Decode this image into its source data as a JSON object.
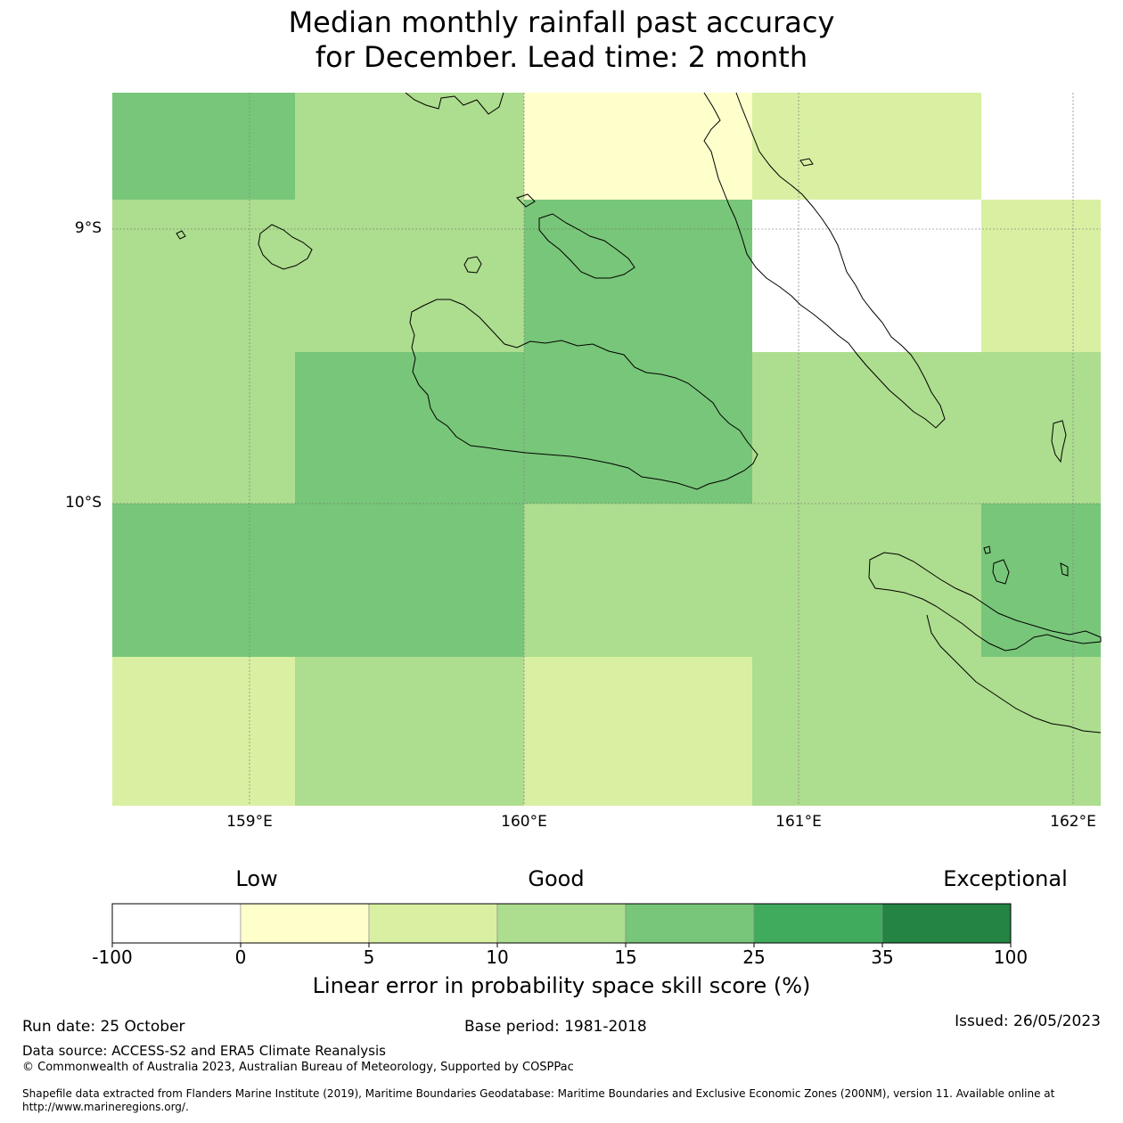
{
  "title_line1": "Median monthly rainfall past accuracy",
  "title_line2": "for December. Lead time: 2 month",
  "map": {
    "lon_range": [
      158.5,
      162.1
    ],
    "lat_range": [
      -8.5,
      -11.1
    ],
    "lat_labels": [
      "9°S",
      "10°S"
    ],
    "lon_labels": [
      "159°E",
      "160°E",
      "161°E",
      "162°E"
    ],
    "grid_cells": [
      {
        "row": 0,
        "col": 0,
        "category": "15-25"
      },
      {
        "row": 0,
        "col": 1,
        "category": "10-15"
      },
      {
        "row": 0,
        "col": 2,
        "category": "0-5"
      },
      {
        "row": 0,
        "col": 3,
        "category": "5-10"
      },
      {
        "row": 0,
        "col": 4,
        "category": "none"
      },
      {
        "row": 1,
        "col": 0,
        "category": "10-15"
      },
      {
        "row": 1,
        "col": 1,
        "category": "10-15"
      },
      {
        "row": 1,
        "col": 2,
        "category": "15-25"
      },
      {
        "row": 1,
        "col": 3,
        "category": "none"
      },
      {
        "row": 1,
        "col": 4,
        "category": "5-10"
      },
      {
        "row": 2,
        "col": 0,
        "category": "10-15"
      },
      {
        "row": 2,
        "col": 1,
        "category": "15-25"
      },
      {
        "row": 2,
        "col": 2,
        "category": "15-25"
      },
      {
        "row": 2,
        "col": 3,
        "category": "10-15"
      },
      {
        "row": 2,
        "col": 4,
        "category": "10-15"
      },
      {
        "row": 3,
        "col": 0,
        "category": "15-25"
      },
      {
        "row": 3,
        "col": 1,
        "category": "15-25"
      },
      {
        "row": 3,
        "col": 2,
        "category": "10-15"
      },
      {
        "row": 3,
        "col": 3,
        "category": "10-15"
      },
      {
        "row": 3,
        "col": 4,
        "category": "15-25"
      },
      {
        "row": 4,
        "col": 0,
        "category": "5-10"
      },
      {
        "row": 4,
        "col": 1,
        "category": "10-15"
      },
      {
        "row": 4,
        "col": 2,
        "category": "5-10"
      },
      {
        "row": 4,
        "col": 3,
        "category": "10-15"
      },
      {
        "row": 4,
        "col": 4,
        "category": "10-15"
      }
    ]
  },
  "colorbar": {
    "low_label": "Low",
    "good_label": "Good",
    "exceptional_label": "Exceptional",
    "ticks": [
      "-100",
      "0",
      "5",
      "10",
      "15",
      "25",
      "35",
      "100"
    ],
    "colors": [
      "#ffffff",
      "#ffffcc",
      "#d9f0a3",
      "#addd8e",
      "#78c679",
      "#41ab5d",
      "#238443"
    ],
    "label": "Linear error in probability space skill score (%)"
  },
  "footer": {
    "run_date": "Run date: 25 October",
    "base_period": "Base period: 1981-2018",
    "issued": "Issued: 26/05/2023",
    "data_source": "Data source: ACCESS-S2 and ERA5 Climate Reanalysis",
    "copyright": "© Commonwealth of Australia 2023, Australian Bureau of Meteorology, Supported by COSPPac",
    "shapefile_line1": "Shapefile data extracted from Flanders Marine Institute (2019), Maritime Boundaries Geodatabase: Maritime Boundaries and Exclusive Economic Zones (200NM), version 11. Available online at",
    "shapefile_line2": "http://www.marineregions.org/."
  }
}
